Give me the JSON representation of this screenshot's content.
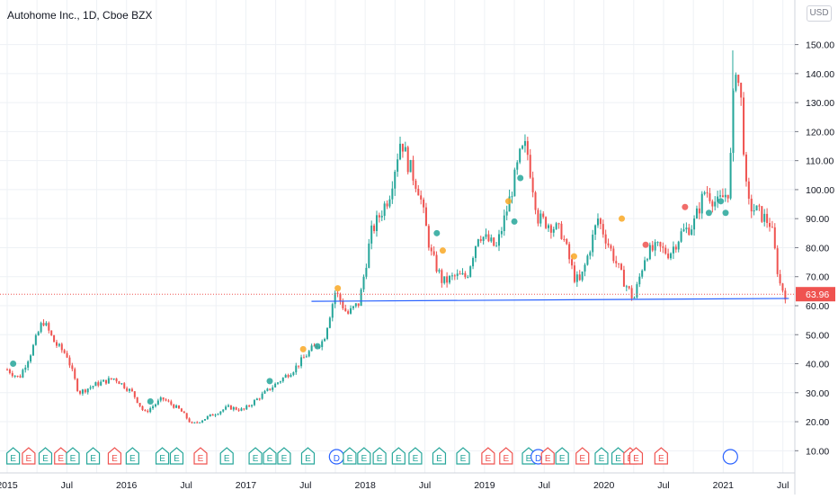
{
  "header": {
    "title": "Autohome Inc., 1D, Cboe BZX",
    "currency": "USD"
  },
  "chart_data": {
    "type": "candlestick",
    "title": "Autohome Inc., 1D, Cboe BZX",
    "ylim": [
      7,
      157
    ],
    "y_ticks": [
      "150.00",
      "140.00",
      "130.00",
      "120.00",
      "110.00",
      "100.00",
      "90.00",
      "80.00",
      "70.00",
      "60.00",
      "50.00",
      "40.00",
      "30.00",
      "20.00",
      "10.00"
    ],
    "x_ticks": [
      {
        "label": "2015",
        "t": 2015.0
      },
      {
        "label": "Jul",
        "t": 2015.5
      },
      {
        "label": "2016",
        "t": 2016.0
      },
      {
        "label": "Jul",
        "t": 2016.5
      },
      {
        "label": "2017",
        "t": 2017.0
      },
      {
        "label": "Jul",
        "t": 2017.5
      },
      {
        "label": "2018",
        "t": 2018.0
      },
      {
        "label": "Jul",
        "t": 2018.5
      },
      {
        "label": "2019",
        "t": 2019.0
      },
      {
        "label": "Jul",
        "t": 2019.5
      },
      {
        "label": "2020",
        "t": 2020.0
      },
      {
        "label": "Jul",
        "t": 2020.5
      },
      {
        "label": "2021",
        "t": 2021.0
      },
      {
        "label": "Jul",
        "t": 2021.5
      }
    ],
    "xlim": [
      2015.0,
      2021.57
    ],
    "price_anchors": [
      [
        2015.0,
        38
      ],
      [
        2015.1,
        35
      ],
      [
        2015.2,
        44
      ],
      [
        2015.3,
        55
      ],
      [
        2015.4,
        47
      ],
      [
        2015.5,
        43
      ],
      [
        2015.6,
        30
      ],
      [
        2015.75,
        33
      ],
      [
        2015.9,
        35
      ],
      [
        2016.05,
        30
      ],
      [
        2016.15,
        23
      ],
      [
        2016.3,
        28
      ],
      [
        2016.45,
        24
      ],
      [
        2016.55,
        19
      ],
      [
        2016.7,
        22
      ],
      [
        2016.85,
        25
      ],
      [
        2016.98,
        24
      ],
      [
        2017.1,
        28
      ],
      [
        2017.25,
        33
      ],
      [
        2017.4,
        38
      ],
      [
        2017.55,
        45
      ],
      [
        2017.65,
        48
      ],
      [
        2017.75,
        65
      ],
      [
        2017.85,
        57
      ],
      [
        2017.95,
        61
      ],
      [
        2018.05,
        85
      ],
      [
        2018.2,
        98
      ],
      [
        2018.3,
        118
      ],
      [
        2018.35,
        110
      ],
      [
        2018.45,
        100
      ],
      [
        2018.55,
        78
      ],
      [
        2018.65,
        68
      ],
      [
        2018.75,
        70
      ],
      [
        2018.85,
        70
      ],
      [
        2018.95,
        85
      ],
      [
        2019.1,
        80
      ],
      [
        2019.2,
        95
      ],
      [
        2019.3,
        112
      ],
      [
        2019.35,
        115
      ],
      [
        2019.45,
        90
      ],
      [
        2019.55,
        88
      ],
      [
        2019.65,
        85
      ],
      [
        2019.75,
        70
      ],
      [
        2019.8,
        68
      ],
      [
        2019.85,
        75
      ],
      [
        2019.95,
        90
      ],
      [
        2020.05,
        80
      ],
      [
        2020.15,
        70
      ],
      [
        2020.25,
        62
      ],
      [
        2020.35,
        78
      ],
      [
        2020.45,
        80
      ],
      [
        2020.55,
        78
      ],
      [
        2020.65,
        85
      ],
      [
        2020.75,
        88
      ],
      [
        2020.85,
        100
      ],
      [
        2020.95,
        95
      ],
      [
        2021.05,
        100
      ],
      [
        2021.1,
        145
      ],
      [
        2021.15,
        130
      ],
      [
        2021.2,
        95
      ],
      [
        2021.3,
        92
      ],
      [
        2021.4,
        88
      ],
      [
        2021.47,
        68
      ],
      [
        2021.52,
        63.96
      ]
    ],
    "last_price": "63.96",
    "price_line_color": "#ef5350",
    "support_line": {
      "start": [
        2017.55,
        61.5
      ],
      "end": [
        2021.55,
        62.5
      ],
      "color": "#2962ff"
    },
    "colors": {
      "up": "#26a69a",
      "down": "#ef5350"
    },
    "dividend_dots": [
      {
        "t": 2015.05,
        "v": 40,
        "c": "#26a69a"
      },
      {
        "t": 2016.2,
        "v": 27,
        "c": "#26a69a"
      },
      {
        "t": 2017.2,
        "v": 34,
        "c": "#26a69a"
      },
      {
        "t": 2017.48,
        "v": 45,
        "c": "#f9a825"
      },
      {
        "t": 2017.6,
        "v": 46,
        "c": "#26a69a"
      },
      {
        "t": 2017.77,
        "v": 66,
        "c": "#f9a825"
      },
      {
        "t": 2018.6,
        "v": 85,
        "c": "#26a69a"
      },
      {
        "t": 2018.65,
        "v": 79,
        "c": "#f9a825"
      },
      {
        "t": 2019.2,
        "v": 96,
        "c": "#f9a825"
      },
      {
        "t": 2019.25,
        "v": 89,
        "c": "#26a69a"
      },
      {
        "t": 2019.3,
        "v": 104,
        "c": "#26a69a"
      },
      {
        "t": 2019.75,
        "v": 77,
        "c": "#f9a825"
      },
      {
        "t": 2020.15,
        "v": 90,
        "c": "#f9a825"
      },
      {
        "t": 2020.35,
        "v": 81,
        "c": "#ef5350"
      },
      {
        "t": 2020.68,
        "v": 94,
        "c": "#ef5350"
      },
      {
        "t": 2020.88,
        "v": 92,
        "c": "#26a69a"
      },
      {
        "t": 2020.98,
        "v": 96,
        "c": "#26a69a"
      },
      {
        "t": 2021.02,
        "v": 92,
        "c": "#26a69a"
      }
    ],
    "events": [
      {
        "label": "E",
        "t": 2015.05,
        "c": "#26a69a"
      },
      {
        "label": "E",
        "t": 2015.18,
        "c": "#ef5350"
      },
      {
        "label": "E",
        "t": 2015.32,
        "c": "#26a69a"
      },
      {
        "label": "E",
        "t": 2015.45,
        "c": "#ef5350"
      },
      {
        "label": "E",
        "t": 2015.55,
        "c": "#26a69a"
      },
      {
        "label": "E",
        "t": 2015.72,
        "c": "#26a69a"
      },
      {
        "label": "E",
        "t": 2015.9,
        "c": "#ef5350"
      },
      {
        "label": "E",
        "t": 2016.05,
        "c": "#26a69a"
      },
      {
        "label": "E",
        "t": 2016.3,
        "c": "#26a69a"
      },
      {
        "label": "E",
        "t": 2016.42,
        "c": "#26a69a"
      },
      {
        "label": "E",
        "t": 2016.62,
        "c": "#ef5350"
      },
      {
        "label": "E",
        "t": 2016.84,
        "c": "#26a69a"
      },
      {
        "label": "E",
        "t": 2017.08,
        "c": "#26a69a"
      },
      {
        "label": "E",
        "t": 2017.2,
        "c": "#26a69a"
      },
      {
        "label": "E",
        "t": 2017.32,
        "c": "#26a69a"
      },
      {
        "label": "E",
        "t": 2017.52,
        "c": "#26a69a"
      },
      {
        "label": "D",
        "t": 2017.76,
        "c": "#2962ff",
        "shape": "circle"
      },
      {
        "label": "E",
        "t": 2017.87,
        "c": "#26a69a"
      },
      {
        "label": "E",
        "t": 2017.99,
        "c": "#26a69a"
      },
      {
        "label": "E",
        "t": 2018.12,
        "c": "#26a69a"
      },
      {
        "label": "E",
        "t": 2018.28,
        "c": "#26a69a"
      },
      {
        "label": "E",
        "t": 2018.42,
        "c": "#26a69a"
      },
      {
        "label": "E",
        "t": 2018.62,
        "c": "#26a69a"
      },
      {
        "label": "E",
        "t": 2018.82,
        "c": "#26a69a"
      },
      {
        "label": "E",
        "t": 2019.03,
        "c": "#ef5350"
      },
      {
        "label": "E",
        "t": 2019.18,
        "c": "#ef5350"
      },
      {
        "label": "E",
        "t": 2019.37,
        "c": "#26a69a"
      },
      {
        "label": "D",
        "t": 2019.45,
        "c": "#2962ff",
        "shape": "circle"
      },
      {
        "label": "E",
        "t": 2019.53,
        "c": "#ef5350"
      },
      {
        "label": "E",
        "t": 2019.65,
        "c": "#26a69a"
      },
      {
        "label": "E",
        "t": 2019.82,
        "c": "#ef5350"
      },
      {
        "label": "E",
        "t": 2019.98,
        "c": "#26a69a"
      },
      {
        "label": "E",
        "t": 2020.12,
        "c": "#26a69a"
      },
      {
        "label": "E",
        "t": 2020.22,
        "c": "#ef5350"
      },
      {
        "label": "E",
        "t": 2020.27,
        "c": "#ef5350"
      },
      {
        "label": "E",
        "t": 2020.48,
        "c": "#ef5350"
      }
    ],
    "circle_marker": {
      "t": 2021.06,
      "c": "#2962ff"
    }
  }
}
